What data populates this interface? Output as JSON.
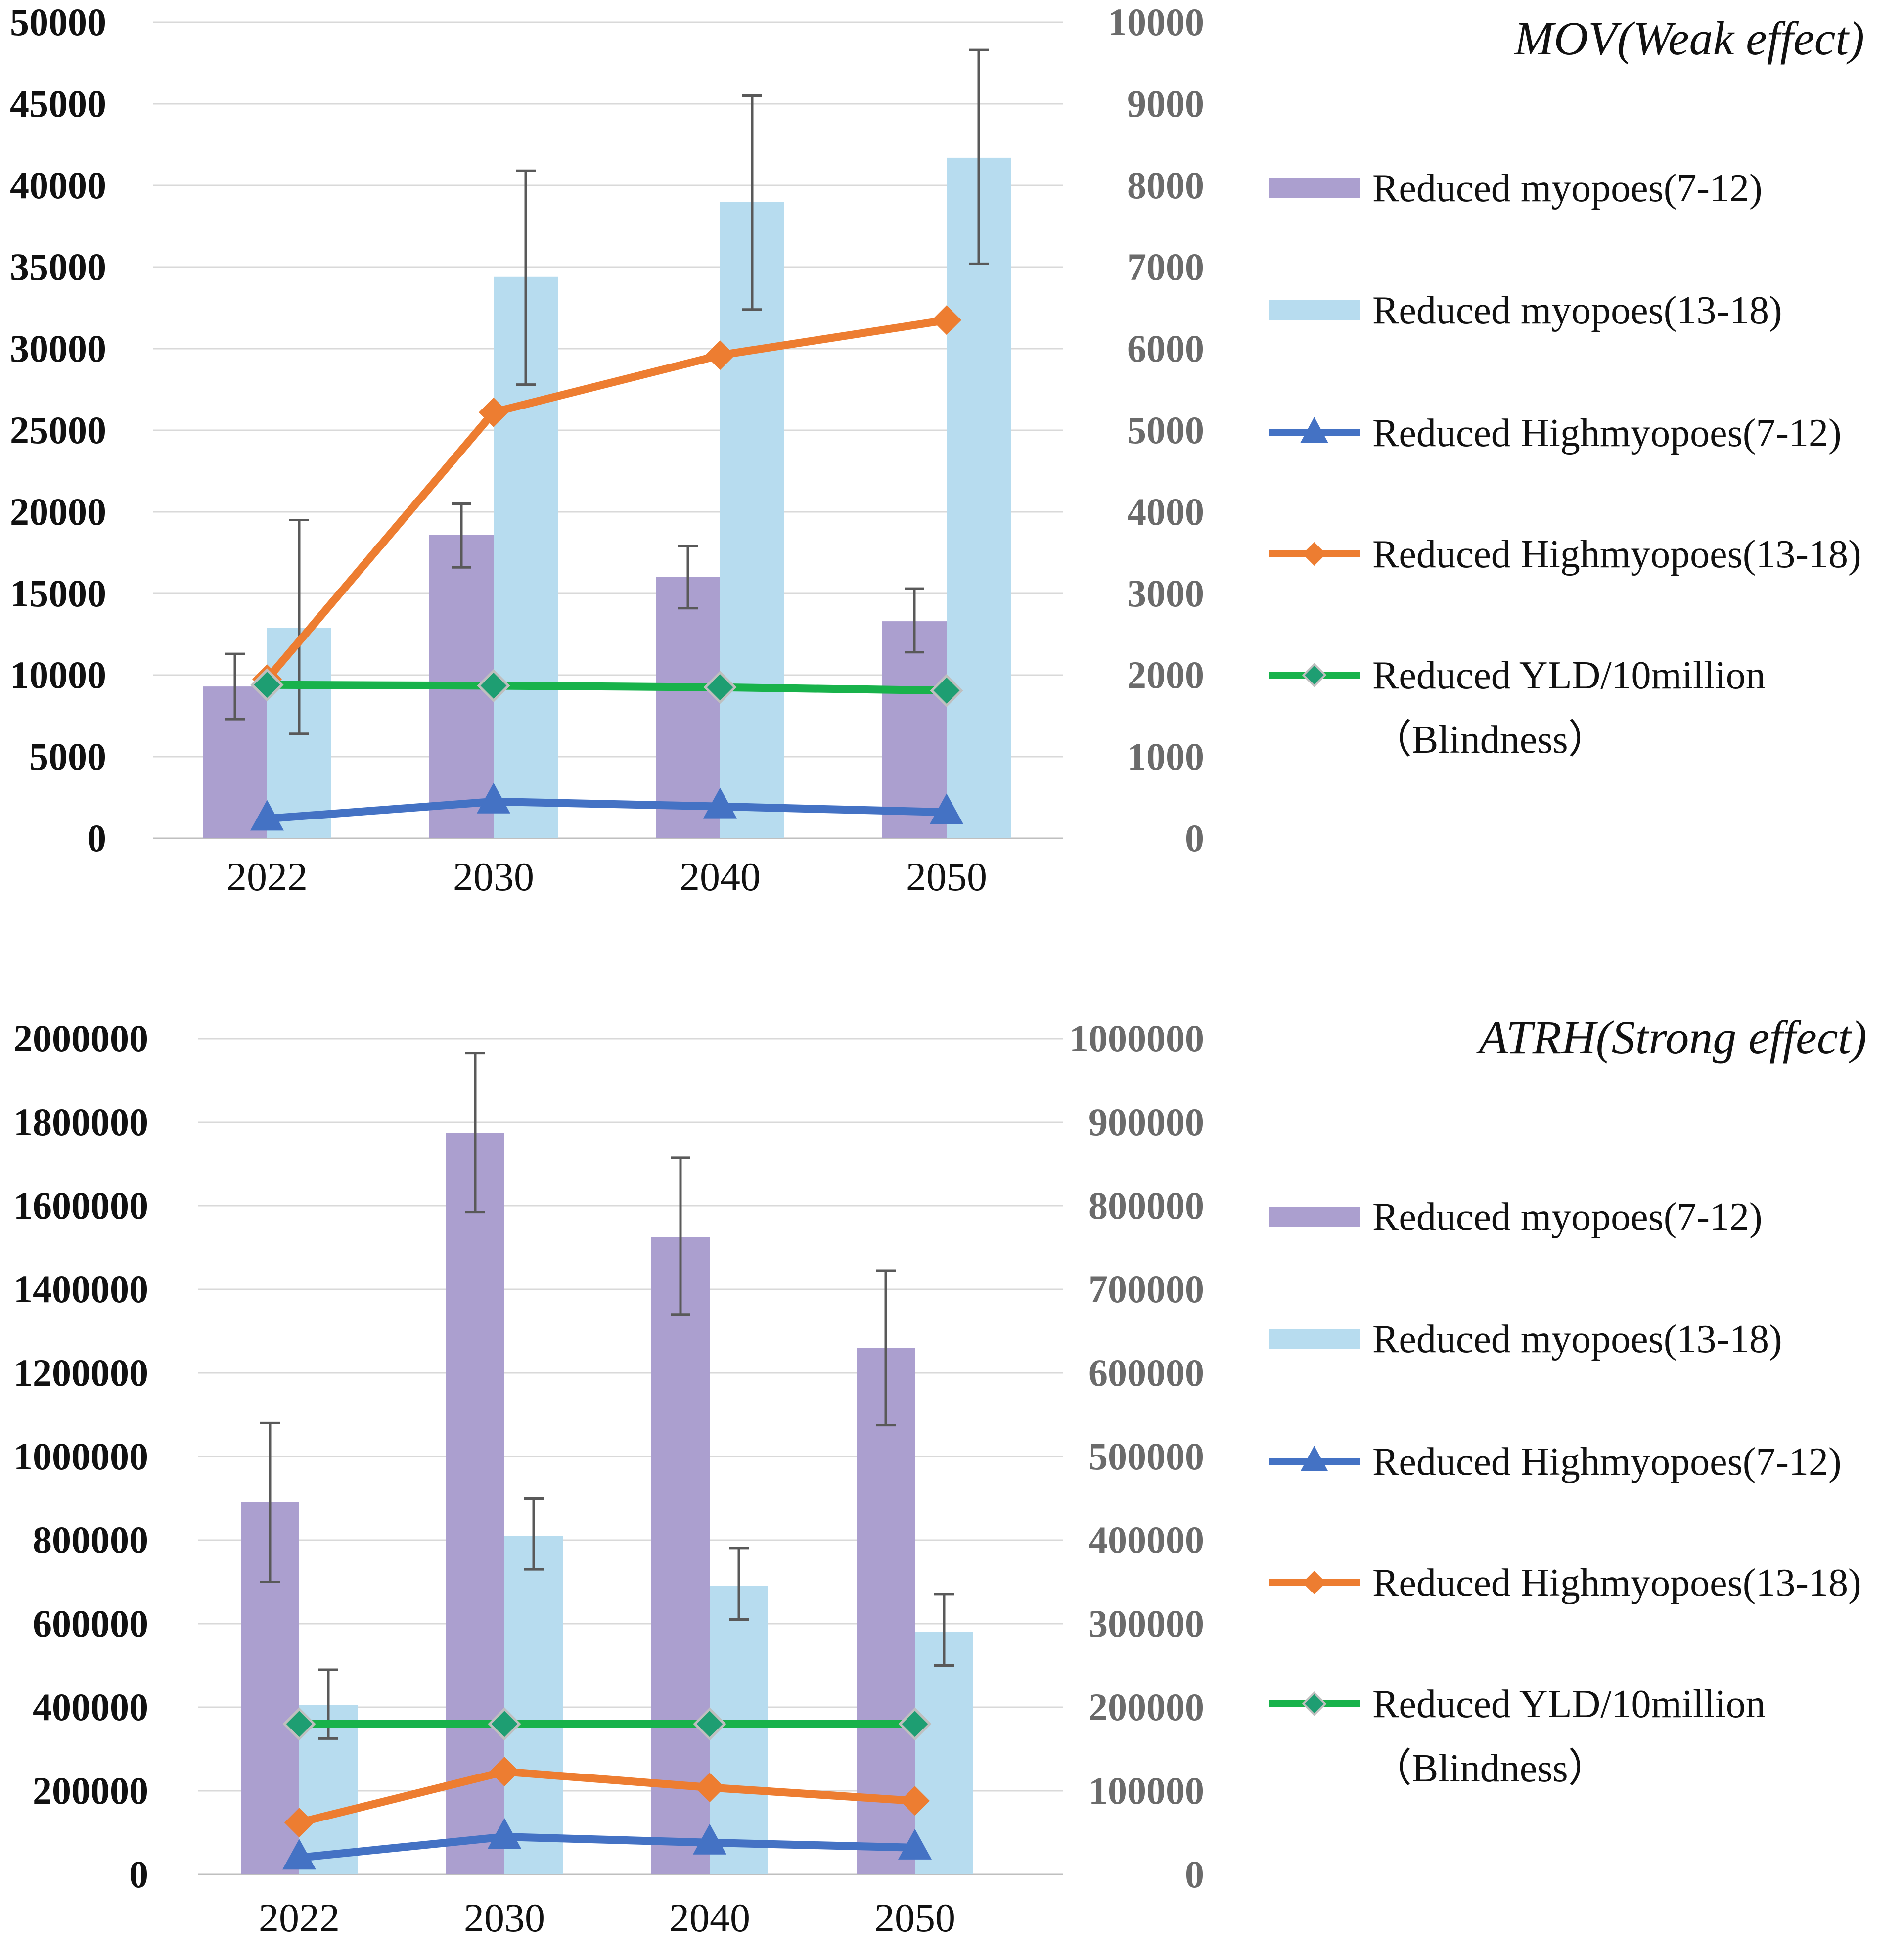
{
  "colors": {
    "purple_bar": "#ab9fcf",
    "blue_bar": "#b7dcef",
    "high_7_12": "#4472c4",
    "high_13_18": "#ed7d31",
    "yld": "#18b24b",
    "yld_marker": "#1e9e72",
    "error_bar": "#595959",
    "grid": "#d9d9d9",
    "axis_right_text": "#6b6b6b"
  },
  "chart_data": [
    {
      "type": "bar",
      "title": "MOV(Weak effect)",
      "categories": [
        "2022",
        "2030",
        "2040",
        "2050"
      ],
      "left_axis": {
        "min": 0,
        "max": 50000,
        "step": 5000,
        "ticks": [
          "0",
          "5000",
          "10000",
          "15000",
          "20000",
          "25000",
          "30000",
          "35000",
          "40000",
          "45000",
          "50000"
        ]
      },
      "right_axis": {
        "min": 0,
        "max": 10000,
        "step": 1000,
        "ticks": [
          "0",
          "1000",
          "2000",
          "3000",
          "4000",
          "5000",
          "6000",
          "7000",
          "8000",
          "9000",
          "10000"
        ]
      },
      "bar_series": [
        {
          "name": "Reduced myopoes(7-12)",
          "values": [
            9300,
            18600,
            16000,
            13300
          ],
          "err_low": [
            7300,
            16600,
            14100,
            11400
          ],
          "err_high": [
            11300,
            20500,
            17900,
            15300
          ]
        },
        {
          "name": "Reduced myopoes(13-18)",
          "values": [
            12900,
            34400,
            39000,
            41700
          ],
          "err_low": [
            6400,
            27800,
            32400,
            35200
          ],
          "err_high": [
            19500,
            40900,
            45500,
            48300
          ]
        }
      ],
      "line_series": [
        {
          "name": "Reduced Highmyopoes(7-12)",
          "values": [
            240,
            450,
            390,
            320
          ],
          "marker": "triangle"
        },
        {
          "name": "Reduced Highmyopoes(13-18)",
          "values": [
            1950,
            5220,
            5920,
            6350
          ],
          "marker": "diamond"
        },
        {
          "name": "Reduced YLD/10million",
          "name_line2": "(Blindness)",
          "values": [
            1880,
            1870,
            1850,
            1810
          ],
          "marker": "small-diamond"
        }
      ],
      "legend": [
        "Reduced myopoes(7-12)",
        "Reduced myopoes(13-18)",
        "Reduced Highmyopoes(7-12)",
        "Reduced Highmyopoes(13-18)",
        "Reduced YLD/10million",
        "（Blindness）"
      ]
    },
    {
      "type": "bar",
      "title": "ATRH(Strong effect)",
      "categories": [
        "2022",
        "2030",
        "2040",
        "2050"
      ],
      "left_axis": {
        "min": 0,
        "max": 2000000,
        "step": 200000,
        "ticks": [
          "0",
          "200000",
          "400000",
          "600000",
          "800000",
          "1000000",
          "1200000",
          "1400000",
          "1600000",
          "1800000",
          "2000000"
        ]
      },
      "right_axis": {
        "min": 0,
        "max": 1000000,
        "step": 100000,
        "ticks": [
          "0",
          "100000",
          "200000",
          "300000",
          "400000",
          "500000",
          "600000",
          "700000",
          "800000",
          "900000",
          "1000000"
        ]
      },
      "bar_series": [
        {
          "name": "Reduced myopoes(7-12)",
          "values": [
            890000,
            1775000,
            1525000,
            1260000
          ],
          "err_low": [
            700000,
            1585000,
            1340000,
            1075000
          ],
          "err_high": [
            1080000,
            1965000,
            1715000,
            1445000
          ]
        },
        {
          "name": "Reduced myopoes(13-18)",
          "values": [
            405000,
            810000,
            690000,
            580000
          ],
          "err_low": [
            325000,
            730000,
            610000,
            500000
          ],
          "err_high": [
            490000,
            900000,
            780000,
            670000
          ]
        }
      ],
      "line_series": [
        {
          "name": "Reduced Highmyopoes(7-12)",
          "values": [
            20000,
            45000,
            38000,
            32000
          ],
          "marker": "triangle"
        },
        {
          "name": "Reduced Highmyopoes(13-18)",
          "values": [
            62000,
            123000,
            104000,
            88000
          ],
          "marker": "diamond"
        },
        {
          "name": "Reduced YLD/10million",
          "name_line2": "(Blindness)",
          "values": [
            180000,
            180000,
            180000,
            180000
          ],
          "marker": "small-diamond"
        }
      ],
      "legend": [
        "Reduced myopoes(7-12)",
        "Reduced myopoes(13-18)",
        "Reduced Highmyopoes(7-12)",
        "Reduced Highmyopoes(13-18)",
        "Reduced YLD/10million",
        "（Blindness）"
      ]
    }
  ]
}
